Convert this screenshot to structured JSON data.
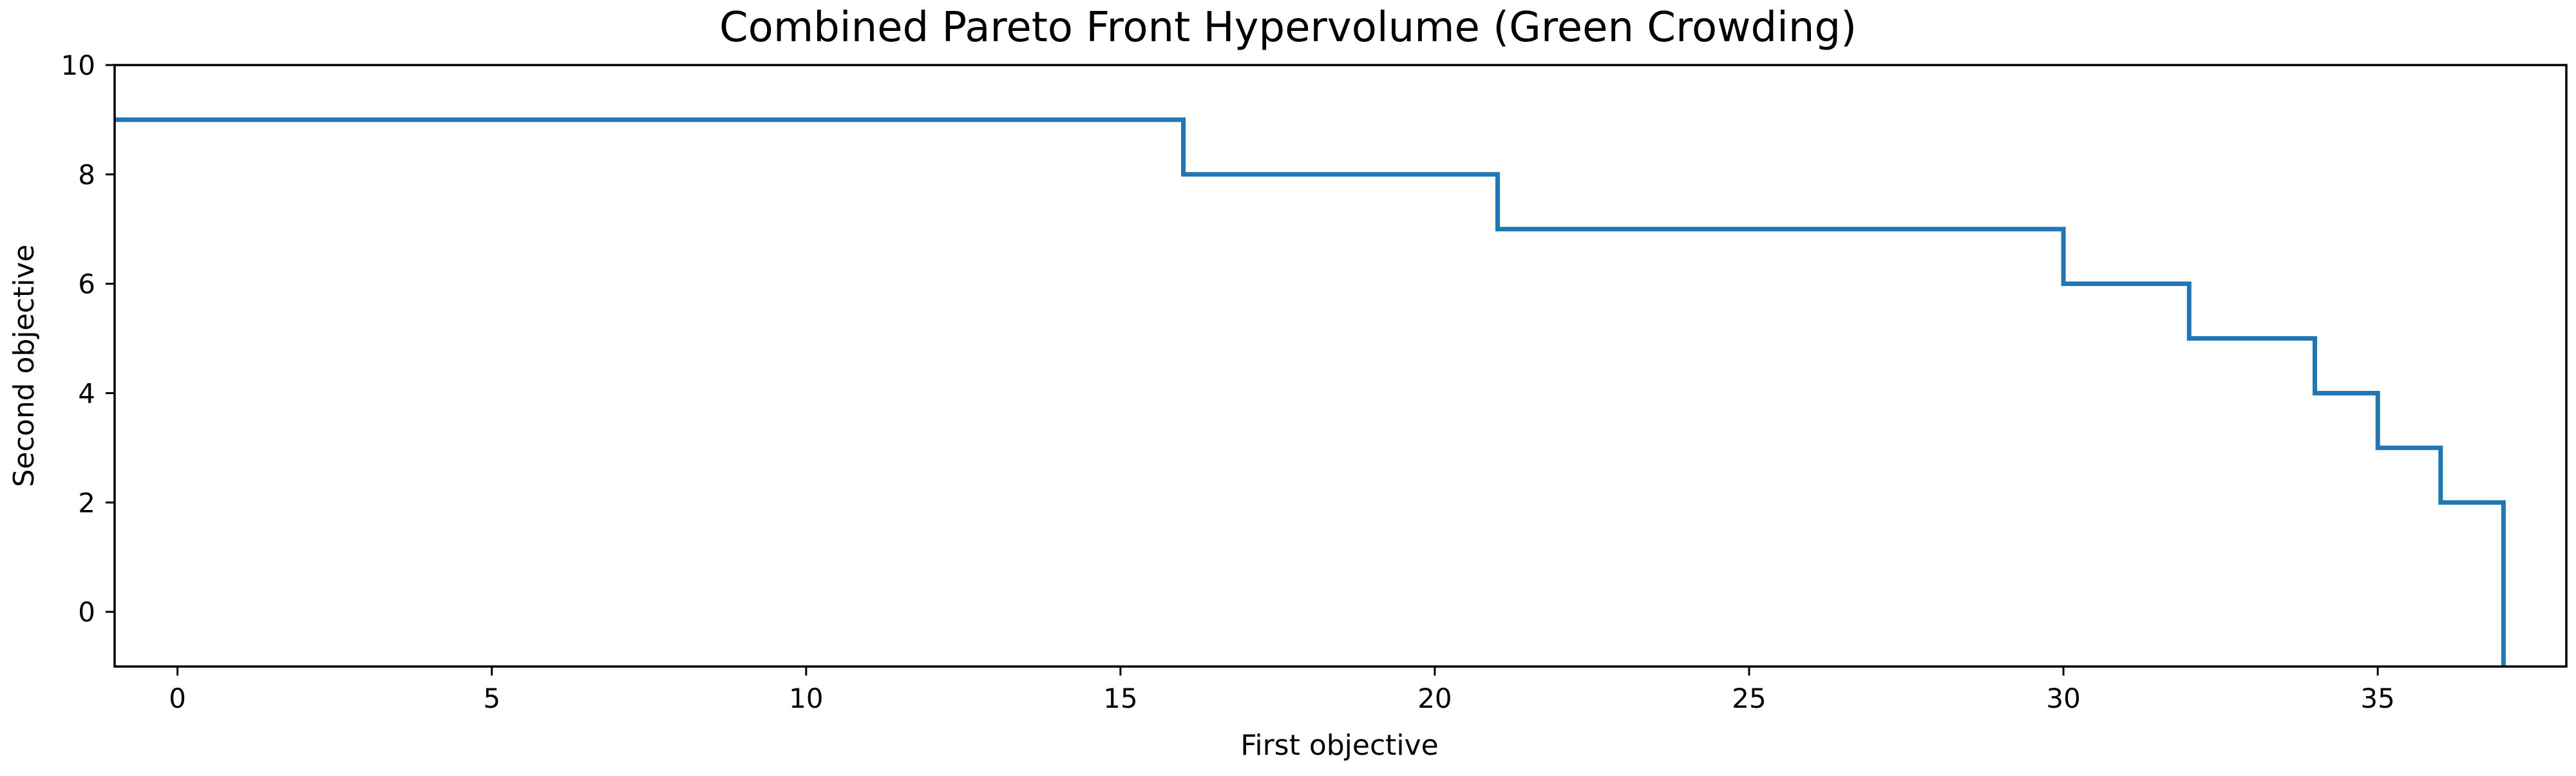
{
  "chart_data": {
    "type": "line",
    "subtype": "step",
    "title": "Combined Pareto Front Hypervolume (Green Crowding)",
    "xlabel": "First objective",
    "ylabel": "Second objective",
    "xlim": [
      -1,
      38
    ],
    "ylim": [
      -1,
      10
    ],
    "xticks": [
      0,
      5,
      10,
      15,
      20,
      25,
      30,
      35
    ],
    "yticks": [
      0,
      2,
      4,
      6,
      8,
      10
    ],
    "grid": false,
    "legend": "none",
    "series": [
      {
        "color": "#1f77b4",
        "points": [
          {
            "x": -1,
            "y": 9
          },
          {
            "x": 16,
            "y": 9
          },
          {
            "x": 16,
            "y": 8
          },
          {
            "x": 21,
            "y": 8
          },
          {
            "x": 21,
            "y": 7
          },
          {
            "x": 30,
            "y": 7
          },
          {
            "x": 30,
            "y": 6
          },
          {
            "x": 32,
            "y": 6
          },
          {
            "x": 32,
            "y": 5
          },
          {
            "x": 34,
            "y": 5
          },
          {
            "x": 34,
            "y": 4
          },
          {
            "x": 35,
            "y": 4
          },
          {
            "x": 35,
            "y": 3
          },
          {
            "x": 36,
            "y": 3
          },
          {
            "x": 36,
            "y": 2
          },
          {
            "x": 37,
            "y": 2
          },
          {
            "x": 37,
            "y": -1
          }
        ]
      }
    ]
  }
}
